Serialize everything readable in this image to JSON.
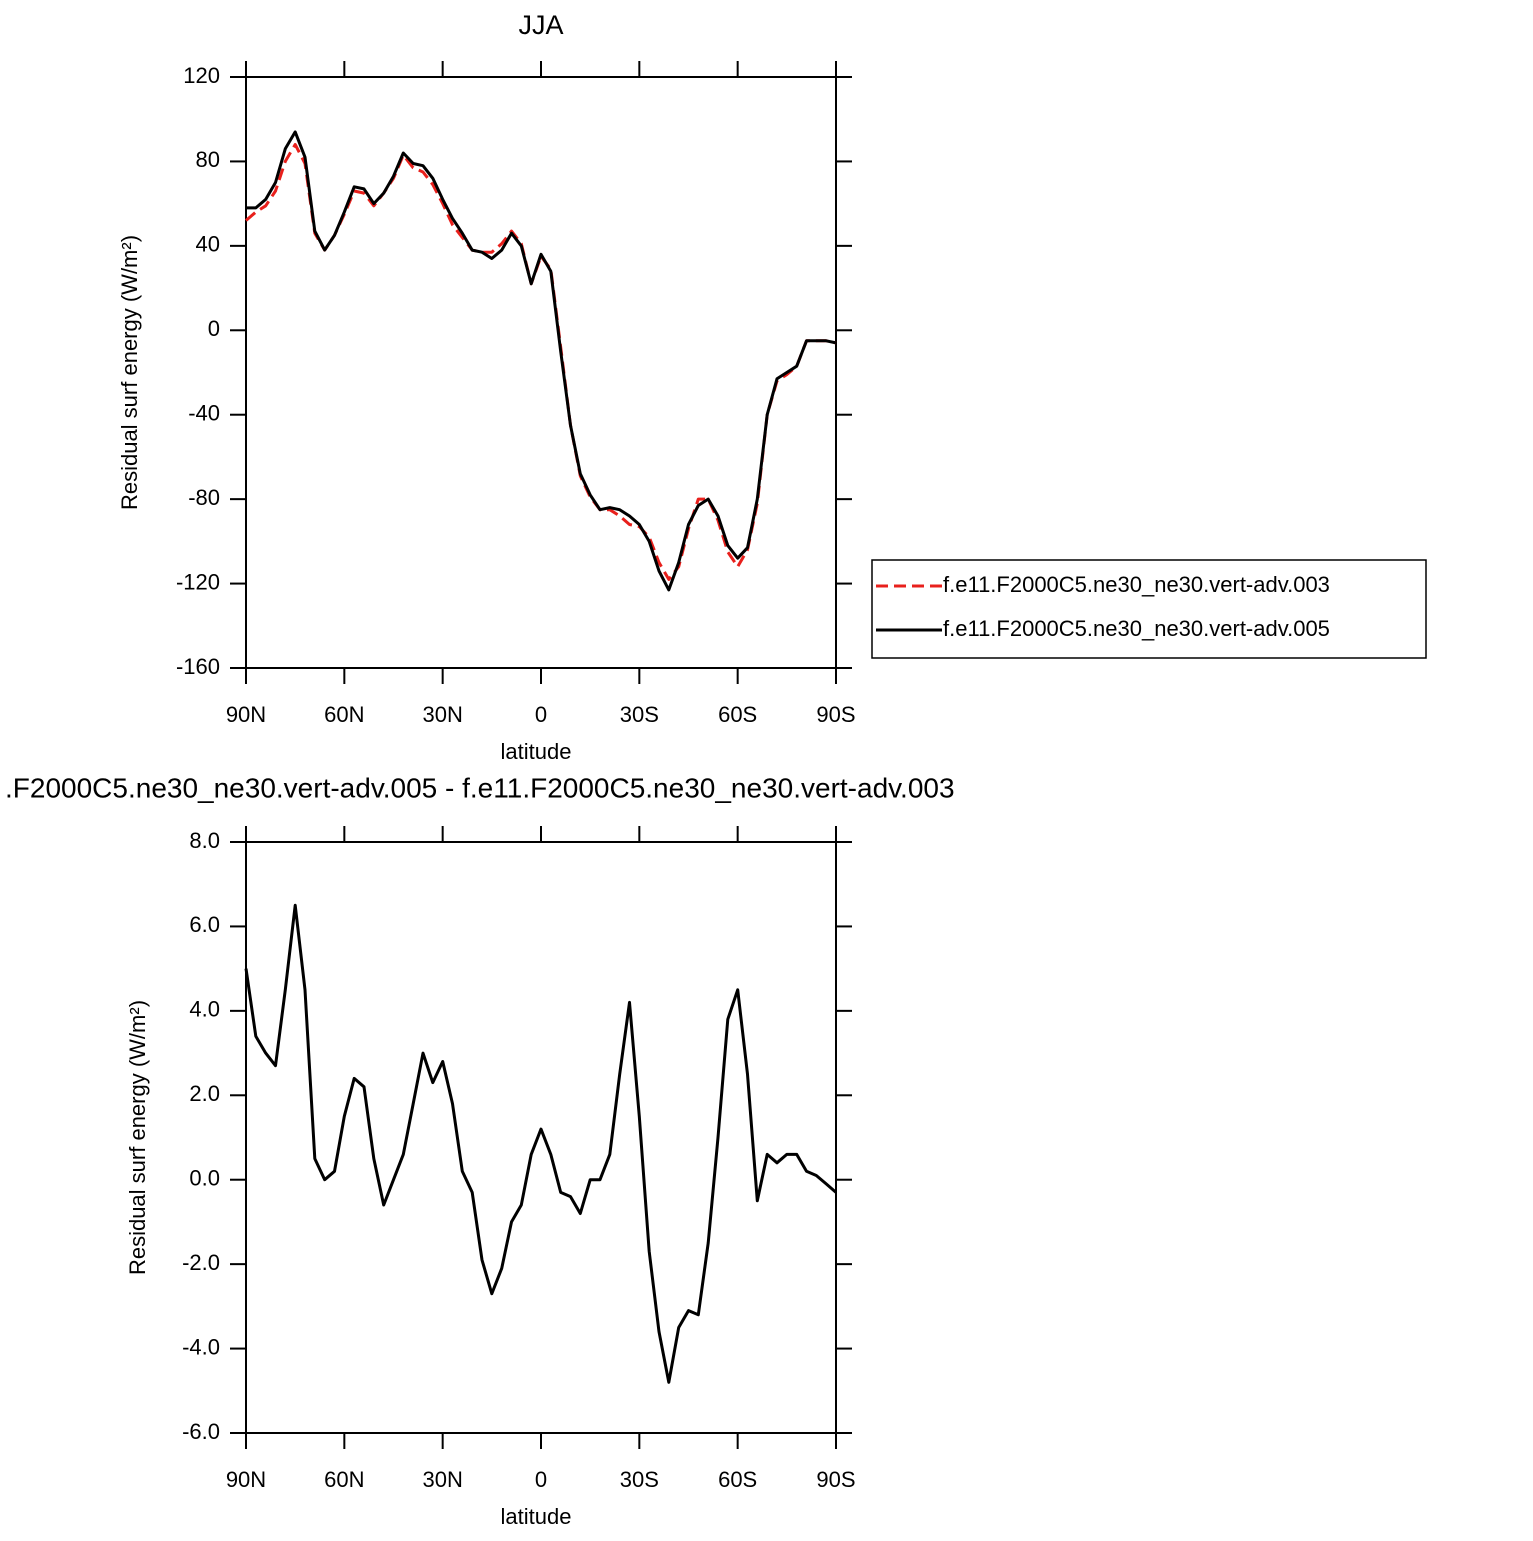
{
  "chart_data": [
    {
      "type": "line",
      "title": "JJA",
      "xlabel": "latitude",
      "ylabel": "Residual surf energy (W/m²)",
      "x": [
        90,
        87,
        84,
        81,
        78,
        75,
        72,
        69,
        66,
        63,
        60,
        57,
        54,
        51,
        48,
        45,
        42,
        39,
        36,
        33,
        30,
        27,
        24,
        21,
        18,
        15,
        12,
        9,
        6,
        3,
        0,
        -3,
        -6,
        -9,
        -12,
        -15,
        -18,
        -21,
        -24,
        -27,
        -30,
        -33,
        -36,
        -39,
        -42,
        -45,
        -48,
        -51,
        -54,
        -57,
        -60,
        -63,
        -66,
        -69,
        -72,
        -75,
        -78,
        -81,
        -84,
        -87,
        -90
      ],
      "series": [
        {
          "name": "f.e11.F2000C5.ne30_ne30.vert-adv.003",
          "color": "#e8201c",
          "line_style": "dashed",
          "values": [
            52,
            56,
            59,
            66,
            80,
            88,
            79,
            46,
            38,
            45,
            55,
            66,
            65,
            59,
            65,
            72,
            83,
            77,
            75,
            69,
            60,
            50,
            44,
            38,
            37,
            37,
            41,
            47,
            41,
            22,
            35,
            29,
            -8,
            -45,
            -69,
            -79,
            -85,
            -85,
            -88,
            -92,
            -93,
            -98,
            -110,
            -118,
            -112,
            -94,
            -80,
            -80,
            -90,
            -105,
            -112,
            -104,
            -82,
            -40,
            -24,
            -21,
            -17,
            -5,
            -5,
            -5,
            -6
          ]
        },
        {
          "name": "f.e11.F2000C5.ne30_ne30.vert-adv.005",
          "color": "#000000",
          "line_style": "solid",
          "values": [
            58,
            58,
            62,
            70,
            86,
            94,
            82,
            47,
            38,
            45,
            56,
            68,
            67,
            60,
            65,
            73,
            84,
            79,
            78,
            72,
            62,
            53,
            46,
            38,
            37,
            34,
            38,
            46,
            40,
            22,
            36,
            28,
            -10,
            -45,
            -68,
            -78,
            -85,
            -84,
            -85,
            -88,
            -92,
            -100,
            -114,
            -123,
            -110,
            -92,
            -83,
            -80,
            -88,
            -102,
            -108,
            -103,
            -80,
            -40,
            -23,
            -20,
            -17,
            -5,
            -5,
            -5,
            -6
          ]
        }
      ],
      "xlim": [
        90,
        -90
      ],
      "xticks": [
        {
          "value": 90,
          "label": "90N"
        },
        {
          "value": 60,
          "label": "60N"
        },
        {
          "value": 30,
          "label": "30N"
        },
        0,
        {
          "value": -30,
          "label": "30S"
        },
        {
          "value": -60,
          "label": "60S"
        },
        {
          "value": -90,
          "label": "90S"
        }
      ],
      "ylim": [
        -160,
        120
      ],
      "yticks": [
        120,
        80,
        40,
        0,
        -40,
        -80,
        -120,
        -160
      ],
      "legend": "right"
    },
    {
      "type": "line",
      "title": ".F2000C5.ne30_ne30.vert-adv.005 - f.e11.F2000C5.ne30_ne30.vert-adv.003",
      "xlabel": "latitude",
      "ylabel": "Residual surf energy (W/m²)",
      "x": [
        90,
        87,
        84,
        81,
        78,
        75,
        72,
        69,
        66,
        63,
        60,
        57,
        54,
        51,
        48,
        45,
        42,
        39,
        36,
        33,
        30,
        27,
        24,
        21,
        18,
        15,
        12,
        9,
        6,
        3,
        0,
        -3,
        -6,
        -9,
        -12,
        -15,
        -18,
        -21,
        -24,
        -27,
        -30,
        -33,
        -36,
        -39,
        -42,
        -45,
        -48,
        -51,
        -54,
        -57,
        -60,
        -63,
        -66,
        -69,
        -72,
        -75,
        -78,
        -81,
        -84,
        -87,
        -90
      ],
      "series": [
        {
          "color": "#000000",
          "line_style": "solid",
          "values": [
            5.0,
            3.4,
            3.0,
            2.7,
            4.5,
            6.5,
            4.5,
            0.5,
            0.0,
            0.2,
            1.5,
            2.4,
            2.2,
            0.5,
            -0.6,
            0.0,
            0.6,
            1.8,
            3.0,
            2.3,
            2.8,
            1.8,
            0.2,
            -0.3,
            -1.9,
            -2.7,
            -2.1,
            -1.0,
            -0.6,
            0.6,
            1.2,
            0.6,
            -0.3,
            -0.4,
            -0.8,
            0.0,
            0.0,
            0.6,
            2.5,
            4.2,
            1.5,
            -1.7,
            -3.6,
            -4.8,
            -3.5,
            -3.1,
            -3.2,
            -1.5,
            1.0,
            3.8,
            4.5,
            2.5,
            -0.5,
            0.6,
            0.4,
            0.6,
            0.6,
            0.2,
            0.1,
            -0.1,
            -0.3
          ]
        }
      ],
      "xlim": [
        90,
        -90
      ],
      "xticks": [
        {
          "value": 90,
          "label": "90N"
        },
        {
          "value": 60,
          "label": "60N"
        },
        {
          "value": 30,
          "label": "30N"
        },
        0,
        {
          "value": -30,
          "label": "30S"
        },
        {
          "value": -60,
          "label": "60S"
        },
        {
          "value": -90,
          "label": "90S"
        }
      ],
      "ylim": [
        -6,
        8
      ],
      "yticks": [
        {
          "value": 8,
          "label": "8.0"
        },
        {
          "value": 6,
          "label": "6.0"
        },
        {
          "value": 4,
          "label": "4.0"
        },
        {
          "value": 2,
          "label": "2.0"
        },
        {
          "value": 0,
          "label": "0.0"
        },
        {
          "value": -2,
          "label": "-2.0"
        },
        {
          "value": -4,
          "label": "-4.0"
        },
        {
          "value": -6,
          "label": "-6.0"
        }
      ]
    }
  ]
}
